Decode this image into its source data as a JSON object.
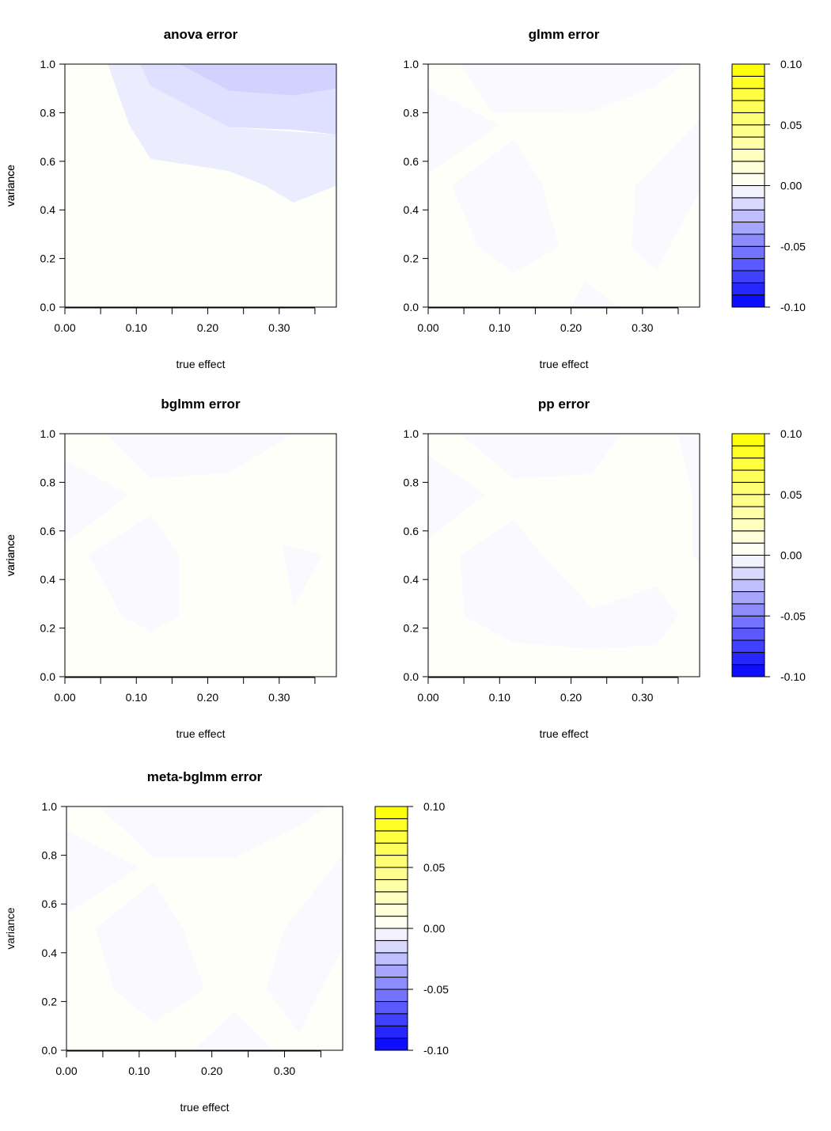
{
  "chart_data": [
    {
      "type": "contour",
      "title": "anova error",
      "xlabel": "true effect",
      "ylabel": "variance",
      "xlim": [
        0,
        0.38
      ],
      "ylim": [
        0,
        1
      ],
      "x_ticks": [
        "0.00",
        "0.10",
        "0.20",
        "0.30"
      ],
      "y_ticks": [
        "0.0",
        "0.2",
        "0.4",
        "0.6",
        "0.8",
        "1.0"
      ],
      "regions": [
        {
          "level": [
            0.0,
            0.005
          ],
          "polygon": [
            [
              0,
              0
            ],
            [
              0,
              0.55
            ],
            [
              0.04,
              0.25
            ],
            [
              0.12,
              0.07
            ],
            [
              0.16,
              0
            ],
            [
              0.33,
              0
            ],
            [
              0.38,
              0.05
            ],
            [
              0.38,
              0
            ],
            [
              0,
              0
            ]
          ]
        },
        {
          "level": [
            -0.01,
            -0.005
          ],
          "polygon": [
            [
              0.06,
              1
            ],
            [
              0.09,
              0.75
            ],
            [
              0.12,
              0.61
            ],
            [
              0.23,
              0.56
            ],
            [
              0.28,
              0.5
            ],
            [
              0.32,
              0.43
            ],
            [
              0.38,
              0.5
            ],
            [
              0.38,
              0.71
            ],
            [
              0.23,
              0.74
            ],
            [
              0.12,
              0.91
            ],
            [
              0.105,
              1
            ]
          ]
        },
        {
          "level": [
            -0.015,
            -0.01
          ],
          "polygon": [
            [
              0.105,
              1
            ],
            [
              0.12,
              0.91
            ],
            [
              0.23,
              0.74
            ],
            [
              0.32,
              0.73
            ],
            [
              0.38,
              0.71
            ],
            [
              0.38,
              0.9
            ],
            [
              0.32,
              0.87
            ],
            [
              0.23,
              0.89
            ],
            [
              0.16,
              1
            ]
          ]
        },
        {
          "level": [
            -0.02,
            -0.015
          ],
          "polygon": [
            [
              0.16,
              1
            ],
            [
              0.23,
              0.89
            ],
            [
              0.32,
              0.87
            ],
            [
              0.38,
              0.9
            ],
            [
              0.38,
              1
            ]
          ]
        }
      ]
    },
    {
      "type": "contour",
      "title": "glmm error",
      "xlabel": "true effect",
      "ylabel": "variance",
      "xlim": [
        0,
        0.38
      ],
      "ylim": [
        0,
        1
      ],
      "x_ticks": [
        "0.00",
        "0.10",
        "0.20",
        "0.30"
      ],
      "y_ticks": [
        "0.0",
        "0.2",
        "0.4",
        "0.6",
        "0.8",
        "1.0"
      ],
      "regions": [
        {
          "level": [
            -0.005,
            0.0
          ],
          "polygon": [
            [
              0.045,
              1
            ],
            [
              0.09,
              0.8
            ],
            [
              0.23,
              0.805
            ],
            [
              0.32,
              0.91
            ],
            [
              0.355,
              1
            ]
          ]
        },
        {
          "level": [
            -0.005,
            0.0
          ],
          "polygon": [
            [
              0,
              0.9
            ],
            [
              0.1,
              0.75
            ],
            [
              0,
              0.55
            ]
          ]
        },
        {
          "level": [
            -0.005,
            0.0
          ],
          "polygon": [
            [
              0.033,
              0.5
            ],
            [
              0.12,
              0.69
            ],
            [
              0.16,
              0.5
            ],
            [
              0.183,
              0.25
            ],
            [
              0.12,
              0.14
            ],
            [
              0.07,
              0.25
            ]
          ]
        },
        {
          "level": [
            -0.005,
            0.0
          ],
          "polygon": [
            [
              0.38,
              0.77
            ],
            [
              0.29,
              0.5
            ],
            [
              0.285,
              0.25
            ],
            [
              0.32,
              0.15
            ],
            [
              0.38,
              0.48
            ]
          ]
        },
        {
          "level": [
            -0.005,
            0.0
          ],
          "polygon": [
            [
              0.2,
              0
            ],
            [
              0.22,
              0.11
            ],
            [
              0.265,
              0
            ]
          ]
        }
      ]
    },
    {
      "type": "contour",
      "title": "bglmm error",
      "xlabel": "true effect",
      "ylabel": "variance",
      "xlim": [
        0,
        0.38
      ],
      "ylim": [
        0,
        1
      ],
      "x_ticks": [
        "0.00",
        "0.10",
        "0.20",
        "0.30"
      ],
      "y_ticks": [
        "0.0",
        "0.2",
        "0.4",
        "0.6",
        "0.8",
        "1.0"
      ],
      "regions": [
        {
          "level": [
            -0.005,
            0.0
          ],
          "polygon": [
            [
              0.058,
              1
            ],
            [
              0.12,
              0.815
            ],
            [
              0.23,
              0.84
            ],
            [
              0.32,
              1
            ]
          ]
        },
        {
          "level": [
            -0.005,
            0.0
          ],
          "polygon": [
            [
              0,
              0.89
            ],
            [
              0.09,
              0.75
            ],
            [
              0,
              0.55
            ]
          ]
        },
        {
          "level": [
            -0.005,
            0.0
          ],
          "polygon": [
            [
              0.033,
              0.5
            ],
            [
              0.12,
              0.665
            ],
            [
              0.16,
              0.5
            ],
            [
              0.16,
              0.25
            ],
            [
              0.12,
              0.185
            ],
            [
              0.08,
              0.25
            ]
          ]
        },
        {
          "level": [
            -0.005,
            0.0
          ],
          "polygon": [
            [
              0.305,
              0.54
            ],
            [
              0.32,
              0.53
            ],
            [
              0.36,
              0.5
            ],
            [
              0.32,
              0.285
            ]
          ]
        }
      ]
    },
    {
      "type": "contour",
      "title": "pp error",
      "xlabel": "true effect",
      "ylabel": "variance",
      "xlim": [
        0,
        0.38
      ],
      "ylim": [
        0,
        1
      ],
      "x_ticks": [
        "0.00",
        "0.10",
        "0.20",
        "0.30"
      ],
      "y_ticks": [
        "0.0",
        "0.2",
        "0.4",
        "0.6",
        "0.8",
        "1.0"
      ],
      "regions": [
        {
          "level": [
            -0.005,
            0.0
          ],
          "polygon": [
            [
              0.045,
              1
            ],
            [
              0.12,
              0.815
            ],
            [
              0.23,
              0.835
            ],
            [
              0.27,
              1
            ]
          ]
        },
        {
          "level": [
            -0.005,
            0.0
          ],
          "polygon": [
            [
              0,
              0.91
            ],
            [
              0.08,
              0.75
            ],
            [
              0,
              0.57
            ]
          ]
        },
        {
          "level": [
            -0.005,
            0.0
          ],
          "polygon": [
            [
              0.045,
              0.5
            ],
            [
              0.12,
              0.645
            ],
            [
              0.16,
              0.5
            ],
            [
              0.23,
              0.28
            ],
            [
              0.32,
              0.37
            ],
            [
              0.35,
              0.25
            ],
            [
              0.32,
              0.13
            ],
            [
              0.23,
              0.115
            ],
            [
              0.12,
              0.14
            ],
            [
              0.05,
              0.25
            ]
          ]
        },
        {
          "level": [
            -0.005,
            0.0
          ],
          "polygon": [
            [
              0.35,
              1
            ],
            [
              0.37,
              0.75
            ],
            [
              0.37,
              0.5
            ],
            [
              0.38,
              0.47
            ],
            [
              0.38,
              1
            ]
          ]
        }
      ]
    },
    {
      "type": "contour",
      "title": "meta-bglmm error",
      "xlabel": "true effect",
      "ylabel": "variance",
      "xlim": [
        0,
        0.38
      ],
      "ylim": [
        0,
        1
      ],
      "x_ticks": [
        "0.00",
        "0.10",
        "0.20",
        "0.30"
      ],
      "y_ticks": [
        "0.0",
        "0.2",
        "0.4",
        "0.6",
        "0.8",
        "1.0"
      ],
      "regions": [
        {
          "level": [
            -0.005,
            0.0
          ],
          "polygon": [
            [
              0.045,
              1
            ],
            [
              0.12,
              0.79
            ],
            [
              0.23,
              0.79
            ],
            [
              0.32,
              0.92
            ],
            [
              0.36,
              1
            ]
          ]
        },
        {
          "level": [
            -0.005,
            0.0
          ],
          "polygon": [
            [
              0,
              0.9
            ],
            [
              0.1,
              0.75
            ],
            [
              0,
              0.56
            ]
          ]
        },
        {
          "level": [
            -0.005,
            0.0
          ],
          "polygon": [
            [
              0.04,
              0.5
            ],
            [
              0.12,
              0.69
            ],
            [
              0.16,
              0.5
            ],
            [
              0.19,
              0.25
            ],
            [
              0.12,
              0.115
            ],
            [
              0.065,
              0.25
            ]
          ]
        },
        {
          "level": [
            -0.005,
            0.0
          ],
          "polygon": [
            [
              0.38,
              0.8
            ],
            [
              0.3,
              0.5
            ],
            [
              0.275,
              0.25
            ],
            [
              0.32,
              0.07
            ],
            [
              0.35,
              0.25
            ],
            [
              0.38,
              0.42
            ]
          ]
        },
        {
          "level": [
            -0.005,
            0.0
          ],
          "polygon": [
            [
              0.175,
              0
            ],
            [
              0.23,
              0.16
            ],
            [
              0.285,
              0
            ]
          ]
        }
      ]
    }
  ],
  "legend": {
    "breaks": [
      -0.1,
      -0.095,
      -0.09,
      -0.085,
      -0.08,
      -0.075,
      -0.07,
      -0.065,
      -0.06,
      -0.055,
      -0.05,
      -0.045,
      -0.04,
      -0.035,
      -0.03,
      -0.025,
      -0.02,
      -0.015,
      -0.01,
      -0.005,
      0.0,
      0.005,
      0.01,
      0.015,
      0.02,
      0.025,
      0.03,
      0.035,
      0.04,
      0.045,
      0.05,
      0.055,
      0.06,
      0.065,
      0.07,
      0.075,
      0.08,
      0.085,
      0.09,
      0.095,
      0.1
    ],
    "ticks": [
      "-0.10",
      "-0.05",
      "0.00",
      "0.05",
      "0.10"
    ],
    "colors": {
      "low": "#0000ff",
      "mid": "#ffffff",
      "high": "#ffff00"
    }
  }
}
